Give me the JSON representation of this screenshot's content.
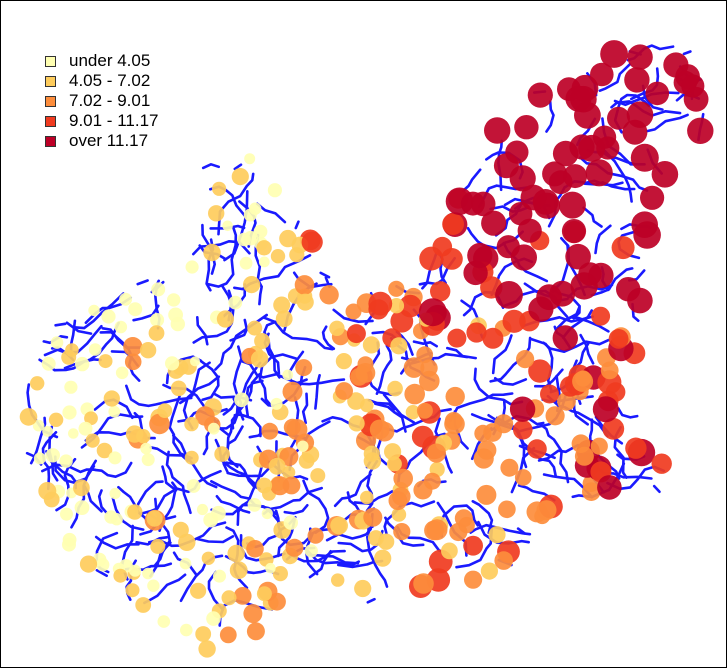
{
  "legend": {
    "items": [
      {
        "label": "under 4.05",
        "color": "#ffffb2"
      },
      {
        "label": "4.05 - 7.02",
        "color": "#fecc5c"
      },
      {
        "label": "7.02 - 9.01",
        "color": "#fd8d3c"
      },
      {
        "label": "9.01 - 11.17",
        "color": "#f03b20"
      },
      {
        "label": "over 11.17",
        "color": "#bd0026"
      }
    ]
  },
  "colors": {
    "stream": "#1a1aff",
    "frame": "#000000",
    "background": "#ffffff"
  },
  "map_content": {
    "layers": [
      "stream-network",
      "proportional-symbols"
    ],
    "symbol_classes": 5
  }
}
